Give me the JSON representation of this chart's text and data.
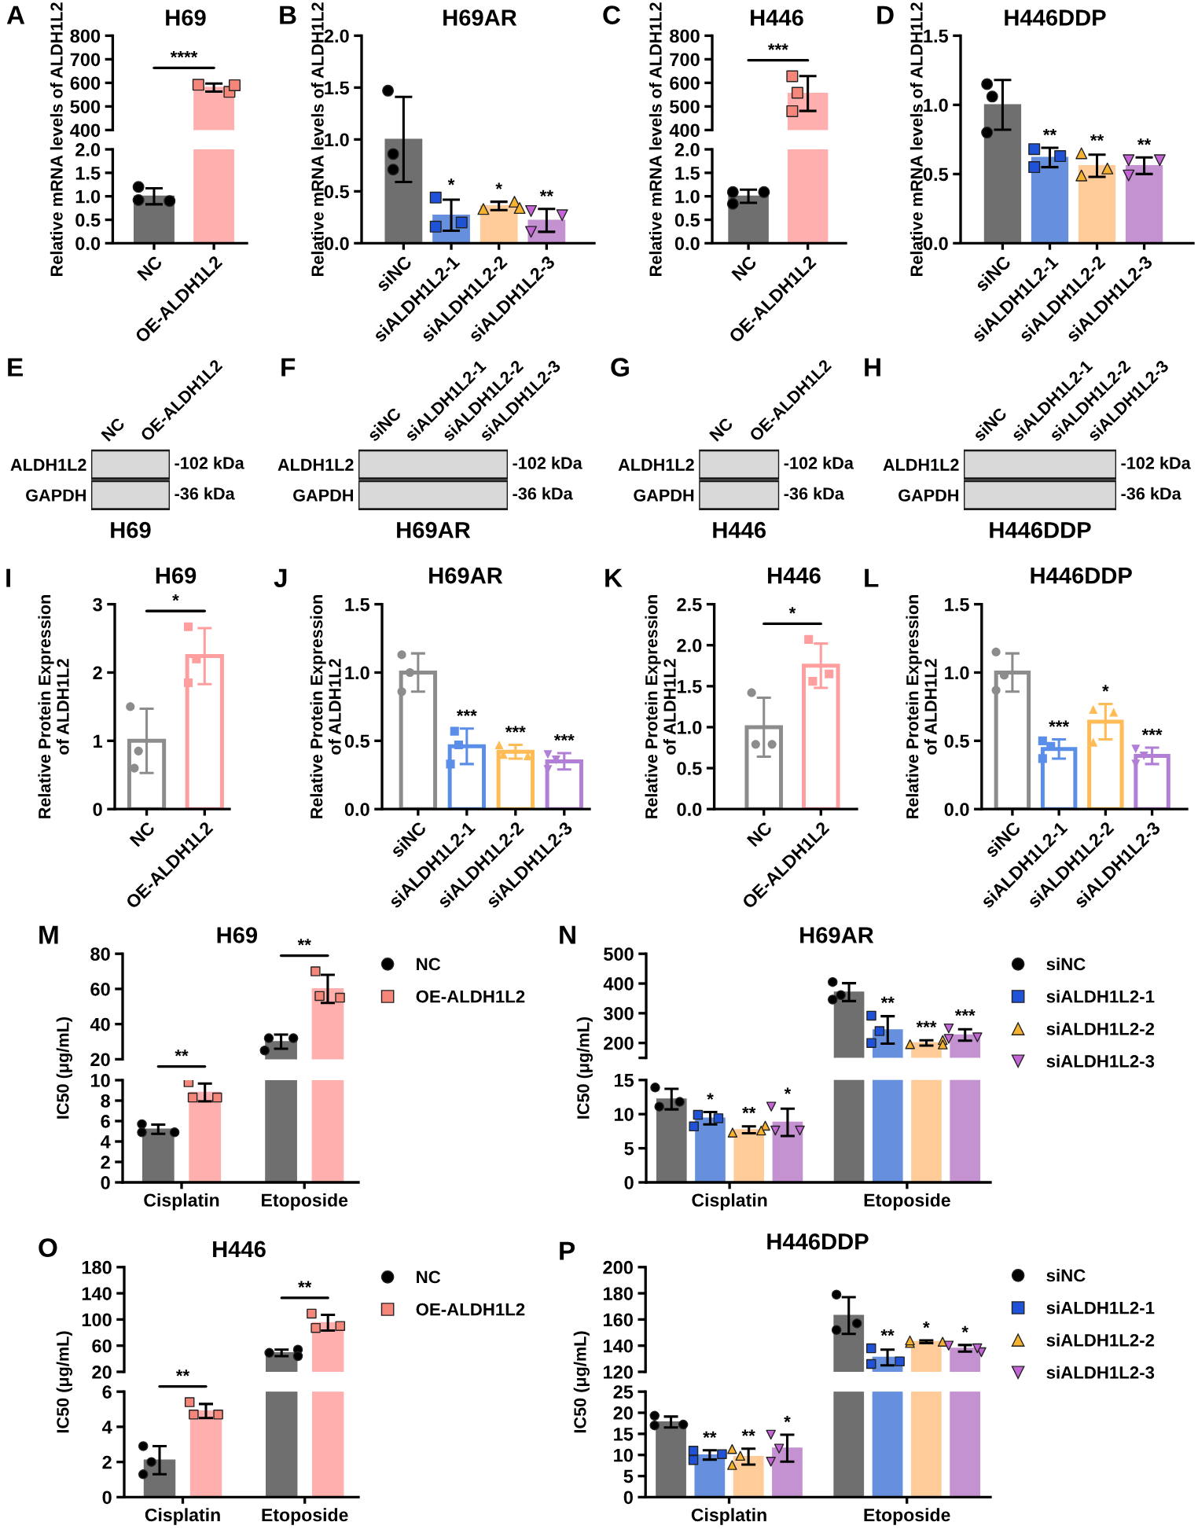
{
  "chart_data": [
    {
      "type": "bar",
      "title": "H69",
      "categories": [
        "NC",
        "OE-ALDH1L2"
      ],
      "ylim": [
        400,
        800
      ],
      "yticks": [
        400,
        500,
        600,
        700,
        800
      ],
      "tick_labels": "y",
      "annotations": [
        "A",
        "****"
      ],
      "series": [
        {
          "type": "bar",
          "colors": [
            "#6f6f6f",
            "#ffb0ae"
          ],
          "values": [
            null,
            580
          ],
          "errors": [
            null,
            17
          ]
        },
        {
          "type": "scatter",
          "color": "#f4877a",
          "marker": "square",
          "x": [
            "OE-ALDH1L2",
            "OE-ALDH1L2",
            "OE-ALDH1L2"
          ],
          "values": [
            592,
            562,
            590
          ]
        }
      ]
    },
    {
      "type": "bar",
      "ylabel": "Relative mRNA levels of ALDH1L2",
      "categories": [
        "NC",
        "OE-ALDH1L2"
      ],
      "ylim": [
        0,
        2
      ],
      "yticks": [
        {
          "value": 0,
          "label": "0.0"
        },
        0.5,
        {
          "value": 1,
          "label": "1.0"
        },
        1.5,
        {
          "value": 2,
          "label": "2.0"
        }
      ],
      "series": [
        {
          "type": "bar",
          "colors": [
            "#6f6f6f",
            "#ffb0ae"
          ],
          "values": [
            1.0,
            2
          ],
          "errors": [
            0.17,
            null
          ]
        },
        {
          "type": "scatter",
          "color": "#000000",
          "marker": "circle",
          "x": [
            "NC",
            "NC",
            "NC"
          ],
          "values": [
            0.92,
            1.2,
            0.9
          ]
        }
      ]
    },
    {
      "type": "bar",
      "title": "H69AR",
      "ylabel": "Relative mRNA levels of ALDH1L2",
      "categories": [
        "siNC",
        "siALDH1L2-1",
        "siALDH1L2-2",
        "siALDH1L2-3"
      ],
      "ylim": [
        0,
        2
      ],
      "yticks": [
        {
          "value": 0,
          "label": "0.0"
        },
        0.5,
        {
          "value": 1,
          "label": "1.0"
        },
        1.5,
        {
          "value": 2,
          "label": "2.0"
        }
      ],
      "annotations": [
        "B"
      ],
      "series": [
        {
          "type": "bar",
          "colors": [
            "#6f6f6f",
            "#6690dd",
            "#ffcc99",
            "#c491d1"
          ],
          "values": [
            1.0,
            0.27,
            0.36,
            0.22
          ],
          "errors": [
            0.41,
            0.15,
            0.04,
            0.11
          ],
          "value_labels": [
            null,
            "*",
            "*",
            "**"
          ]
        },
        {
          "type": "scatter",
          "color": "#000000",
          "marker": "circle",
          "x": [
            "siNC",
            "siNC",
            "siNC"
          ],
          "values": [
            1.47,
            0.86,
            0.71
          ]
        },
        {
          "type": "scatter",
          "color": "#1f52d6",
          "marker": "square",
          "x": [
            "siALDH1L2-1",
            "siALDH1L2-1",
            "siALDH1L2-1"
          ],
          "values": [
            0.16,
            0.44,
            0.2
          ]
        },
        {
          "type": "scatter",
          "color": "#f7b230",
          "marker": "triangle",
          "x": [
            "siALDH1L2-2",
            "siALDH1L2-2",
            "siALDH1L2-2"
          ],
          "values": [
            0.33,
            0.4,
            0.34
          ]
        },
        {
          "type": "scatter",
          "color": "#c464d6",
          "marker": "triangle-down",
          "x": [
            "siALDH1L2-3",
            "siALDH1L2-3",
            "siALDH1L2-3"
          ],
          "values": [
            0.31,
            0.11,
            0.27
          ]
        }
      ]
    },
    {
      "type": "bar",
      "title": "H446",
      "categories": [
        "NC",
        "OE-ALDH1L2"
      ],
      "ylim": [
        400,
        800
      ],
      "yticks": [
        400,
        500,
        600,
        700,
        800
      ],
      "tick_labels": "y",
      "annotations": [
        "C",
        "***"
      ],
      "series": [
        {
          "type": "bar",
          "colors": [
            "#6f6f6f",
            "#ffb0ae"
          ],
          "values": [
            null,
            555
          ],
          "errors": [
            null,
            74
          ]
        },
        {
          "type": "scatter",
          "color": "#f4877a",
          "marker": "square",
          "x": [
            "OE-ALDH1L2",
            "OE-ALDH1L2",
            "OE-ALDH1L2"
          ],
          "values": [
            628,
            558,
            480
          ]
        }
      ]
    },
    {
      "type": "bar",
      "ylabel": "Relative mRNA levels of ALDH1L2",
      "categories": [
        "NC",
        "OE-ALDH1L2"
      ],
      "ylim": [
        0,
        2
      ],
      "yticks": [
        {
          "value": 0,
          "label": "0.0"
        },
        0.5,
        {
          "value": 1,
          "label": "1.0"
        },
        1.5,
        {
          "value": 2,
          "label": "2.0"
        }
      ],
      "series": [
        {
          "type": "bar",
          "colors": [
            "#6f6f6f",
            "#ffb0ae"
          ],
          "values": [
            1.0,
            2
          ],
          "errors": [
            0.14,
            null
          ]
        },
        {
          "type": "scatter",
          "color": "#000000",
          "marker": "circle",
          "x": [
            "NC",
            "NC",
            "NC"
          ],
          "values": [
            1.09,
            0.84,
            1.09
          ]
        }
      ]
    },
    {
      "type": "bar",
      "title": "H446DDP",
      "ylabel": "Relative mRNA levels of ALDH1L2",
      "categories": [
        "siNC",
        "siALDH1L2-1",
        "siALDH1L2-2",
        "siALDH1L2-3"
      ],
      "ylim": [
        0,
        1.5
      ],
      "yticks": [
        {
          "value": 0,
          "label": "0.0"
        },
        0.5,
        {
          "value": 1,
          "label": "1.0"
        },
        1.5
      ],
      "annotations": [
        "D"
      ],
      "series": [
        {
          "type": "bar",
          "colors": [
            "#6f6f6f",
            "#6690dd",
            "#ffcc99",
            "#c491d1"
          ],
          "values": [
            1.0,
            0.62,
            0.56,
            0.56
          ],
          "errors": [
            0.18,
            0.07,
            0.08,
            0.06
          ],
          "value_labels": [
            null,
            "**",
            "**",
            "**"
          ]
        },
        {
          "type": "scatter",
          "color": "#000000",
          "marker": "circle",
          "x": [
            "siNC",
            "siNC",
            "siNC"
          ],
          "values": [
            1.15,
            1.06,
            0.8
          ]
        },
        {
          "type": "scatter",
          "color": "#1f52d6",
          "marker": "square",
          "x": [
            "siALDH1L2-1",
            "siALDH1L2-1",
            "siALDH1L2-1"
          ],
          "values": [
            0.68,
            0.63,
            0.55
          ]
        },
        {
          "type": "scatter",
          "color": "#f7b230",
          "marker": "triangle",
          "x": [
            "siALDH1L2-2",
            "siALDH1L2-2",
            "siALDH1L2-2"
          ],
          "values": [
            0.49,
            0.65,
            0.54
          ]
        },
        {
          "type": "scatter",
          "color": "#c464d6",
          "marker": "triangle-down",
          "x": [
            "siALDH1L2-3",
            "siALDH1L2-3",
            "siALDH1L2-3"
          ],
          "values": [
            0.6,
            0.49,
            0.6
          ]
        }
      ]
    },
    {
      "type": "other",
      "categories": [
        "NC",
        "OE-ALDH1L2"
      ],
      "y_categories": [
        "ALDH1L2",
        "GAPDH"
      ],
      "y2_categories": [
        "-102 kDa",
        "-36 kDa"
      ],
      "xlabel": "H69",
      "annotations": [
        "E"
      ]
    },
    {
      "type": "other",
      "categories": [
        "siNC",
        "siALDH1L2-1",
        "siALDH1L2-2",
        "siALDH1L2-3"
      ],
      "y_categories": [
        "ALDH1L2",
        "GAPDH"
      ],
      "y2_categories": [
        "-102 kDa",
        "-36 kDa"
      ],
      "xlabel": "H69AR",
      "annotations": [
        "F"
      ]
    },
    {
      "type": "other",
      "categories": [
        "NC",
        "OE-ALDH1L2"
      ],
      "y_categories": [
        "ALDH1L2",
        "GAPDH"
      ],
      "y2_categories": [
        "-102 kDa",
        "-36 kDa"
      ],
      "xlabel": "H446",
      "annotations": [
        "G"
      ]
    },
    {
      "type": "other",
      "categories": [
        "siNC",
        "siALDH1L2-1",
        "siALDH1L2-2",
        "siALDH1L2-3"
      ],
      "y_categories": [
        "ALDH1L2",
        "GAPDH"
      ],
      "y2_categories": [
        "-102 kDa",
        "-36 kDa"
      ],
      "xlabel": "H446DDP",
      "annotations": [
        "H"
      ]
    },
    {
      "type": "bar",
      "title": "H69",
      "ylabel": "Relative Protein Expression\nof ALDH1L2",
      "categories": [
        "NC",
        "OE-ALDH1L2"
      ],
      "ylim": [
        0,
        3
      ],
      "yticks": [
        0,
        1,
        2,
        3
      ],
      "annotations": [
        "I",
        "*"
      ],
      "series": [
        {
          "type": "bar",
          "colors": [
            "#8c8c8c",
            "#ff9e9e"
          ],
          "values": [
            1.0,
            2.24
          ],
          "errors": [
            0.47,
            0.41
          ]
        },
        {
          "type": "scatter",
          "color": "#8c8c8c",
          "marker": "circle",
          "x": [
            "NC",
            "NC",
            "NC"
          ],
          "values": [
            1.5,
            0.85,
            0.6
          ]
        },
        {
          "type": "scatter",
          "color": "#ff9e9e",
          "marker": "square",
          "x": [
            "OE-ALDH1L2",
            "OE-ALDH1L2",
            "OE-ALDH1L2"
          ],
          "values": [
            2.67,
            2.2,
            1.85
          ]
        }
      ]
    },
    {
      "type": "bar",
      "title": "H69AR",
      "ylabel": "Relative Protein Expression\nof ALDH1L2",
      "categories": [
        "siNC",
        "siALDH1L2-1",
        "siALDH1L2-2",
        "siALDH1L2-3"
      ],
      "ylim": [
        0,
        1.5
      ],
      "yticks": [
        {
          "value": 0,
          "label": "0.0"
        },
        0.5,
        {
          "value": 1,
          "label": "1.0"
        },
        1.5
      ],
      "annotations": [
        "J"
      ],
      "series": [
        {
          "type": "bar",
          "colors": [
            "#8c8c8c",
            "#5b8ee8",
            "#ffbb55",
            "#b27fd6"
          ],
          "values": [
            1.0,
            0.46,
            0.42,
            0.35
          ],
          "errors": [
            0.14,
            0.13,
            0.05,
            0.06
          ],
          "value_labels": [
            null,
            "***",
            "***",
            "***"
          ]
        },
        {
          "type": "scatter",
          "color": "#8c8c8c",
          "marker": "circle",
          "x": [
            "siNC",
            "siNC",
            "siNC"
          ],
          "values": [
            1.13,
            1.0,
            0.86
          ]
        },
        {
          "type": "scatter",
          "color": "#5b8ee8",
          "marker": "square",
          "x": [
            "siALDH1L2-1",
            "siALDH1L2-1",
            "siALDH1L2-1"
          ],
          "values": [
            0.57,
            0.33,
            0.47
          ]
        },
        {
          "type": "scatter",
          "color": "#ffbb55",
          "marker": "triangle",
          "x": [
            "siALDH1L2-2",
            "siALDH1L2-2",
            "siALDH1L2-2"
          ],
          "values": [
            0.4,
            0.47,
            0.39
          ]
        },
        {
          "type": "scatter",
          "color": "#b27fd6",
          "marker": "triangle-down",
          "x": [
            "siALDH1L2-3",
            "siALDH1L2-3",
            "siALDH1L2-3"
          ],
          "values": [
            0.36,
            0.4,
            0.29
          ]
        }
      ]
    },
    {
      "type": "bar",
      "title": "H446",
      "ylabel": "Relative Protein Expression\nof ALDH1L2",
      "categories": [
        "NC",
        "OE-ALDH1L2"
      ],
      "ylim": [
        0,
        2.5
      ],
      "yticks": [
        {
          "value": 0,
          "label": "0.0"
        },
        0.5,
        {
          "value": 1,
          "label": "1.0"
        },
        1.5,
        {
          "value": 2,
          "label": "2.0"
        },
        2.5
      ],
      "annotations": [
        "K",
        "*"
      ],
      "series": [
        {
          "type": "bar",
          "colors": [
            "#8c8c8c",
            "#ff9e9e"
          ],
          "values": [
            1.0,
            1.75
          ],
          "errors": [
            0.36,
            0.27
          ]
        },
        {
          "type": "scatter",
          "color": "#8c8c8c",
          "marker": "circle",
          "x": [
            "NC",
            "NC",
            "NC"
          ],
          "values": [
            0.79,
            1.42,
            0.79
          ]
        },
        {
          "type": "scatter",
          "color": "#ff9e9e",
          "marker": "square",
          "x": [
            "OE-ALDH1L2",
            "OE-ALDH1L2",
            "OE-ALDH1L2"
          ],
          "values": [
            1.56,
            2.07,
            1.65
          ]
        }
      ]
    },
    {
      "type": "bar",
      "title": "H446DDP",
      "ylabel": "Relative Protein Expression\nof ALDH1L2",
      "categories": [
        "siNC",
        "siALDH1L2-1",
        "siALDH1L2-2",
        "siALDH1L2-3"
      ],
      "ylim": [
        0,
        1.5
      ],
      "yticks": [
        {
          "value": 0,
          "label": "0.0"
        },
        0.5,
        {
          "value": 1,
          "label": "1.0"
        },
        1.5
      ],
      "annotations": [
        "L"
      ],
      "series": [
        {
          "type": "bar",
          "colors": [
            "#8c8c8c",
            "#5b8ee8",
            "#ffbb55",
            "#b27fd6"
          ],
          "values": [
            1.0,
            0.44,
            0.64,
            0.39
          ],
          "errors": [
            0.14,
            0.07,
            0.13,
            0.06
          ],
          "value_labels": [
            null,
            "***",
            "*",
            "***"
          ]
        },
        {
          "type": "scatter",
          "color": "#8c8c8c",
          "marker": "circle",
          "x": [
            "siNC",
            "siNC",
            "siNC"
          ],
          "values": [
            1.15,
            0.98,
            0.87
          ]
        },
        {
          "type": "scatter",
          "color": "#5b8ee8",
          "marker": "square",
          "x": [
            "siALDH1L2-1",
            "siALDH1L2-1",
            "siALDH1L2-1"
          ],
          "values": [
            0.5,
            0.37,
            0.46
          ]
        },
        {
          "type": "scatter",
          "color": "#ffbb55",
          "marker": "triangle",
          "x": [
            "siALDH1L2-2",
            "siALDH1L2-2",
            "siALDH1L2-2"
          ],
          "values": [
            0.73,
            0.49,
            0.71
          ]
        },
        {
          "type": "scatter",
          "color": "#b27fd6",
          "marker": "triangle-down",
          "x": [
            "siALDH1L2-3",
            "siALDH1L2-3",
            "siALDH1L2-3"
          ],
          "values": [
            0.44,
            0.33,
            0.39
          ]
        }
      ]
    },
    {
      "type": "bar",
      "title": "H69",
      "categories": [
        "Cisplatin",
        "Etoposide"
      ],
      "ylim": [
        20,
        80
      ],
      "yticks": [
        20,
        40,
        60,
        80
      ],
      "tick_labels": "y",
      "legend": "right",
      "annotations": [
        "M",
        "**"
      ],
      "series": [
        {
          "type": "bar",
          "color": "#6f6f6f",
          "values": [
            null,
            30
          ],
          "errors": [
            null,
            4
          ]
        },
        {
          "type": "bar",
          "color": "#ffb0ae",
          "values": [
            null,
            60
          ],
          "errors": [
            null,
            8
          ]
        },
        {
          "type": "scatter",
          "name": "NC",
          "color": "#000000",
          "marker": "circle",
          "x": [
            "Etoposide",
            "Etoposide",
            "Etoposide"
          ],
          "values": [
            32,
            25,
            32
          ]
        },
        {
          "type": "scatter",
          "name": "OE-ALDH1L2",
          "color": "#f4877a",
          "marker": "square",
          "x": [
            "Etoposide",
            "Etoposide",
            "Etoposide"
          ],
          "values": [
            56,
            70,
            55
          ]
        }
      ]
    },
    {
      "type": "bar",
      "ylabel": "IC50 (μg/mL)",
      "categories": [
        "Cisplatin",
        "Etoposide"
      ],
      "ylim": [
        0,
        10
      ],
      "yticks": [
        0,
        2,
        4,
        6,
        8,
        10
      ],
      "annotations": [
        "**"
      ],
      "series": [
        {
          "type": "bar",
          "color": "#6f6f6f",
          "values": [
            5.2,
            10
          ],
          "errors": [
            0.45,
            null
          ]
        },
        {
          "type": "bar",
          "color": "#ffb0ae",
          "values": [
            8.8,
            10
          ],
          "errors": [
            0.87,
            null
          ]
        },
        {
          "type": "scatter",
          "color": "#000000",
          "marker": "circle",
          "x": [
            "Cisplatin",
            "Cisplatin",
            "Cisplatin"
          ],
          "values": [
            5.7,
            4.9,
            4.9
          ]
        },
        {
          "type": "scatter",
          "color": "#f4877a",
          "marker": "square",
          "x": [
            "Cisplatin",
            "Cisplatin",
            "Cisplatin"
          ],
          "values": [
            8.3,
            9.8,
            8.3
          ]
        }
      ]
    },
    {
      "type": "bar",
      "title": "H69AR",
      "categories": [
        "Cisplatin",
        "Etoposide"
      ],
      "ylim": [
        150,
        500
      ],
      "yticks": [
        {
          "value": 150,
          "label": null
        },
        200,
        300,
        400,
        500
      ],
      "tick_labels": "y",
      "legend": "right",
      "annotations": [
        "N"
      ],
      "series": [
        {
          "type": "bar",
          "color": "#6f6f6f",
          "values": [
            null,
            371
          ],
          "errors": [
            null,
            30
          ]
        },
        {
          "type": "bar",
          "color": "#6690dd",
          "values": [
            null,
            244
          ],
          "errors": [
            null,
            46
          ],
          "value_labels": [
            null,
            "**"
          ]
        },
        {
          "type": "bar",
          "color": "#ffcc99",
          "values": [
            null,
            200
          ],
          "errors": [
            null,
            9
          ],
          "value_labels": [
            null,
            "***"
          ]
        },
        {
          "type": "bar",
          "color": "#c491d1",
          "values": [
            null,
            227
          ],
          "errors": [
            null,
            19
          ],
          "value_labels": [
            null,
            "***"
          ]
        },
        {
          "type": "scatter",
          "name": "siNC",
          "color": "#000000",
          "marker": "circle",
          "x": [
            "Etoposide",
            "Etoposide",
            "Etoposide"
          ],
          "values": [
            346,
            405,
            361
          ]
        },
        {
          "type": "scatter",
          "name": "siALDH1L2-1",
          "color": "#1f52d6",
          "marker": "square",
          "x": [
            "Etoposide",
            "Etoposide",
            "Etoposide"
          ],
          "values": [
            292,
            240,
            200
          ]
        },
        {
          "type": "scatter",
          "name": "siALDH1L2-2",
          "color": "#f7b230",
          "marker": "triangle",
          "x": [
            "Etoposide",
            "Etoposide",
            "Etoposide"
          ],
          "values": [
            196,
            210,
            195
          ]
        },
        {
          "type": "scatter",
          "name": "siALDH1L2-3",
          "color": "#c464d6",
          "marker": "triangle-down",
          "x": [
            "Etoposide",
            "Etoposide",
            "Etoposide"
          ],
          "values": [
            249,
            214,
            219
          ]
        }
      ]
    },
    {
      "type": "bar",
      "ylabel": "IC50 (μg/mL)",
      "categories": [
        "Cisplatin",
        "Etoposide"
      ],
      "ylim": [
        0,
        15
      ],
      "yticks": [
        0,
        5,
        10,
        15
      ],
      "series": [
        {
          "type": "bar",
          "color": "#6f6f6f",
          "values": [
            12.2,
            15
          ],
          "errors": [
            1.5,
            null
          ]
        },
        {
          "type": "bar",
          "color": "#6690dd",
          "values": [
            9.4,
            15
          ],
          "errors": [
            0.9,
            null
          ],
          "value_labels": [
            "*",
            null
          ]
        },
        {
          "type": "bar",
          "color": "#ffcc99",
          "values": [
            7.7,
            15
          ],
          "errors": [
            0.5,
            null
          ],
          "value_labels": [
            "**",
            null
          ]
        },
        {
          "type": "bar",
          "color": "#c491d1",
          "values": [
            8.8,
            15
          ],
          "errors": [
            2.0,
            null
          ],
          "value_labels": [
            "*",
            null
          ]
        },
        {
          "type": "scatter",
          "color": "#000000",
          "marker": "circle",
          "x": [
            "Cisplatin",
            "Cisplatin",
            "Cisplatin"
          ],
          "values": [
            11.1,
            13.9,
            11.8
          ]
        },
        {
          "type": "scatter",
          "color": "#1f52d6",
          "marker": "square",
          "x": [
            "Cisplatin",
            "Cisplatin",
            "Cisplatin"
          ],
          "values": [
            9.9,
            8.2,
            9.4
          ]
        },
        {
          "type": "scatter",
          "color": "#f7b230",
          "marker": "triangle",
          "x": [
            "Cisplatin",
            "Cisplatin",
            "Cisplatin"
          ],
          "values": [
            7.3,
            8.3,
            7.6
          ]
        },
        {
          "type": "scatter",
          "color": "#c464d6",
          "marker": "triangle-down",
          "x": [
            "Cisplatin",
            "Cisplatin",
            "Cisplatin"
          ],
          "values": [
            7.6,
            11.1,
            7.6
          ]
        }
      ]
    },
    {
      "type": "bar",
      "title": "H446",
      "categories": [
        "Cisplatin",
        "Etoposide"
      ],
      "ylim": [
        20,
        180
      ],
      "yticks": [
        20,
        60,
        100,
        140,
        180
      ],
      "tick_labels": "y",
      "legend": "right",
      "annotations": [
        "O",
        "**"
      ],
      "series": [
        {
          "type": "bar",
          "color": "#6f6f6f",
          "values": [
            null,
            49
          ],
          "errors": [
            null,
            5
          ]
        },
        {
          "type": "bar",
          "color": "#ffb0ae",
          "values": [
            null,
            95
          ],
          "errors": [
            null,
            12
          ]
        },
        {
          "type": "scatter",
          "name": "NC",
          "color": "#000000",
          "marker": "circle",
          "x": [
            "Etoposide",
            "Etoposide",
            "Etoposide"
          ],
          "values": [
            49,
            54,
            44
          ]
        },
        {
          "type": "scatter",
          "name": "OE-ALDH1L2",
          "color": "#f4877a",
          "marker": "square",
          "x": [
            "Etoposide",
            "Etoposide",
            "Etoposide"
          ],
          "values": [
            87,
            109,
            90
          ]
        }
      ]
    },
    {
      "type": "bar",
      "ylabel": "IC50 (μg/mL)",
      "categories": [
        "Cisplatin",
        "Etoposide"
      ],
      "ylim": [
        0,
        6
      ],
      "yticks": [
        0,
        2,
        4,
        6
      ],
      "annotations": [
        "**"
      ],
      "series": [
        {
          "type": "bar",
          "color": "#6f6f6f",
          "values": [
            2.1,
            6
          ],
          "errors": [
            0.8,
            null
          ]
        },
        {
          "type": "bar",
          "color": "#ffb0ae",
          "values": [
            4.9,
            6
          ],
          "errors": [
            0.4,
            null
          ]
        },
        {
          "type": "scatter",
          "color": "#000000",
          "marker": "circle",
          "x": [
            "Cisplatin",
            "Cisplatin",
            "Cisplatin"
          ],
          "values": [
            2.9,
            2.0,
            1.3
          ]
        },
        {
          "type": "scatter",
          "color": "#f4877a",
          "marker": "square",
          "x": [
            "Cisplatin",
            "Cisplatin",
            "Cisplatin"
          ],
          "values": [
            4.7,
            5.4,
            4.7
          ]
        }
      ]
    },
    {
      "type": "bar",
      "title": "H446DDP",
      "categories": [
        "Cisplatin",
        "Etoposide"
      ],
      "ylim": [
        120,
        200
      ],
      "yticks": [
        120,
        140,
        160,
        180,
        200
      ],
      "tick_labels": "y",
      "legend": "right",
      "annotations": [
        "P"
      ],
      "series": [
        {
          "type": "bar",
          "color": "#6f6f6f",
          "values": [
            null,
            163
          ],
          "errors": [
            null,
            14
          ]
        },
        {
          "type": "bar",
          "color": "#6690dd",
          "values": [
            null,
            131
          ],
          "errors": [
            null,
            6
          ],
          "value_labels": [
            null,
            "**"
          ]
        },
        {
          "type": "bar",
          "color": "#ffcc99",
          "values": [
            null,
            143
          ],
          "errors": [
            null,
            1
          ],
          "value_labels": [
            null,
            "*"
          ]
        },
        {
          "type": "bar",
          "color": "#c491d1",
          "values": [
            null,
            138
          ],
          "errors": [
            null,
            2.5
          ],
          "value_labels": [
            null,
            "*"
          ]
        },
        {
          "type": "scatter",
          "name": "siNC",
          "color": "#000000",
          "marker": "circle",
          "x": [
            "Etoposide",
            "Etoposide",
            "Etoposide"
          ],
          "values": [
            152,
            179,
            157
          ]
        },
        {
          "type": "scatter",
          "name": "siALDH1L2-1",
          "color": "#1f52d6",
          "marker": "square",
          "x": [
            "Etoposide",
            "Etoposide",
            "Etoposide"
          ],
          "values": [
            126,
            138,
            128
          ]
        },
        {
          "type": "scatter",
          "name": "siALDH1L2-2",
          "color": "#f7b230",
          "marker": "triangle",
          "x": [
            "Etoposide",
            "Etoposide",
            "Etoposide"
          ],
          "values": [
            142,
            143,
            144
          ]
        },
        {
          "type": "scatter",
          "name": "siALDH1L2-3",
          "color": "#c464d6",
          "marker": "triangle-down",
          "x": [
            "Etoposide",
            "Etoposide",
            "Etoposide"
          ],
          "values": [
            140,
            135,
            138
          ]
        }
      ]
    },
    {
      "type": "bar",
      "ylabel": "IC50 (μg/mL)",
      "categories": [
        "Cisplatin",
        "Etoposide"
      ],
      "ylim": [
        0,
        25
      ],
      "yticks": [
        0,
        5,
        10,
        15,
        20,
        25
      ],
      "series": [
        {
          "type": "bar",
          "color": "#6f6f6f",
          "values": [
            17.8,
            25
          ],
          "errors": [
            1.3,
            null
          ]
        },
        {
          "type": "bar",
          "color": "#6690dd",
          "values": [
            10.0,
            25
          ],
          "errors": [
            1.1,
            null
          ],
          "value_labels": [
            "**",
            null
          ]
        },
        {
          "type": "bar",
          "color": "#ffcc99",
          "values": [
            9.6,
            25
          ],
          "errors": [
            1.9,
            null
          ],
          "value_labels": [
            "**",
            null
          ]
        },
        {
          "type": "bar",
          "color": "#c491d1",
          "values": [
            11.6,
            25
          ],
          "errors": [
            3.2,
            null
          ],
          "value_labels": [
            "*",
            null
          ]
        },
        {
          "type": "scatter",
          "color": "#000000",
          "marker": "circle",
          "x": [
            "Cisplatin",
            "Cisplatin",
            "Cisplatin"
          ],
          "values": [
            17.0,
            19.3,
            17.2
          ]
        },
        {
          "type": "scatter",
          "color": "#1f52d6",
          "marker": "square",
          "x": [
            "Cisplatin",
            "Cisplatin",
            "Cisplatin"
          ],
          "values": [
            8.8,
            11.0,
            10.2
          ]
        },
        {
          "type": "scatter",
          "color": "#f7b230",
          "marker": "triangle",
          "x": [
            "Cisplatin",
            "Cisplatin",
            "Cisplatin"
          ],
          "values": [
            7.6,
            11.4,
            9.8
          ]
        },
        {
          "type": "scatter",
          "color": "#c464d6",
          "marker": "triangle-down",
          "x": [
            "Cisplatin",
            "Cisplatin",
            "Cisplatin"
          ],
          "values": [
            14.8,
            11.5,
            8.4
          ]
        }
      ]
    }
  ]
}
